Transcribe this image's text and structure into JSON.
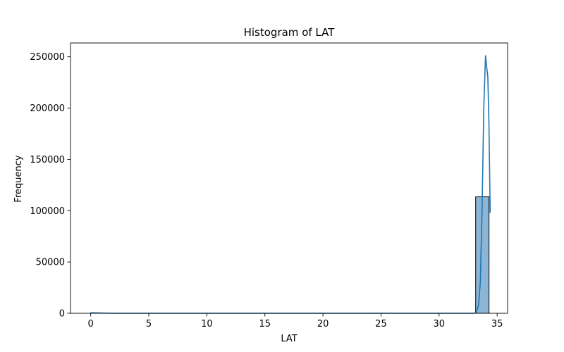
{
  "chart_data": {
    "type": "bar",
    "title": "Histogram of LAT",
    "xlabel": "LAT",
    "ylabel": "Frequency",
    "xlim": [
      -1.74,
      35.9
    ],
    "ylim": [
      0,
      263500
    ],
    "xticks": [
      0,
      5,
      10,
      15,
      20,
      25,
      30,
      35
    ],
    "yticks": [
      0,
      50000,
      100000,
      150000,
      200000,
      250000
    ],
    "bins": [
      {
        "x0": 0.0,
        "x1": 1.15,
        "value": 300
      },
      {
        "x0": 33.15,
        "x1": 34.3,
        "value": 113500
      }
    ],
    "kde": {
      "x": [
        0,
        0.5,
        1.0,
        2,
        5,
        10,
        15,
        20,
        25,
        30,
        33.0,
        33.2,
        33.4,
        33.55,
        33.7,
        33.85,
        34.0,
        34.1,
        34.2,
        34.3,
        34.4
      ],
      "y": [
        500,
        400,
        200,
        0,
        0,
        0,
        0,
        0,
        0,
        0,
        0,
        1000,
        8000,
        30000,
        100000,
        200000,
        251000,
        240000,
        230000,
        180000,
        98000
      ]
    },
    "grid": false,
    "colors": {
      "bar_fill": "#8db6d6",
      "bar_edge": "#000000",
      "kde_line": "#1f77b4",
      "axis": "#000000"
    }
  }
}
